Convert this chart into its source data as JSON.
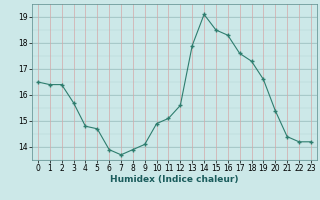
{
  "x": [
    0,
    1,
    2,
    3,
    4,
    5,
    6,
    7,
    8,
    9,
    10,
    11,
    12,
    13,
    14,
    15,
    16,
    17,
    18,
    19,
    20,
    21,
    22,
    23
  ],
  "y": [
    16.5,
    16.4,
    16.4,
    15.7,
    14.8,
    14.7,
    13.9,
    13.7,
    13.9,
    14.1,
    14.9,
    15.1,
    15.6,
    17.9,
    19.1,
    18.5,
    18.3,
    17.6,
    17.3,
    16.6,
    15.4,
    14.4,
    14.2,
    14.2
  ],
  "xlabel": "Humidex (Indice chaleur)",
  "ylim": [
    13.5,
    19.5
  ],
  "xlim": [
    -0.5,
    23.5
  ],
  "line_color": "#2e7d6e",
  "marker_color": "#2e7d6e",
  "bg_color": "#cce8e8",
  "grid_color_teal": "#9bbfbf",
  "grid_color_pink": "#d4a8a8",
  "yticks": [
    14,
    15,
    16,
    17,
    18,
    19
  ],
  "xticks": [
    0,
    1,
    2,
    3,
    4,
    5,
    6,
    7,
    8,
    9,
    10,
    11,
    12,
    13,
    14,
    15,
    16,
    17,
    18,
    19,
    20,
    21,
    22,
    23
  ],
  "xlabel_fontsize": 6.5,
  "tick_fontsize": 5.5
}
